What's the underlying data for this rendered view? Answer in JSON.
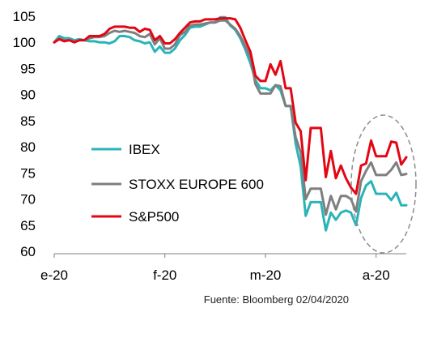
{
  "chart_data": {
    "type": "line",
    "x_tick_labels": [
      "e-20",
      "f-20",
      "m-20",
      "a-20"
    ],
    "x_tick_index": [
      0,
      22,
      42,
      64
    ],
    "ylim": [
      60,
      105
    ],
    "y_ticks": [
      60,
      65,
      70,
      75,
      80,
      85,
      90,
      95,
      100,
      105
    ],
    "series": [
      {
        "name": "IBEX",
        "color": "#2ab4b8",
        "values": [
          100.0,
          101.2,
          100.8,
          100.8,
          100.4,
          100.6,
          100.4,
          100.2,
          100.2,
          100.0,
          100.0,
          99.8,
          100.2,
          101.2,
          101.2,
          101.0,
          100.4,
          100.2,
          99.8,
          100.0,
          98.2,
          99.2,
          98.0,
          98.0,
          98.8,
          100.4,
          101.4,
          102.8,
          103.0,
          103.0,
          103.4,
          103.8,
          103.8,
          104.8,
          104.8,
          103.2,
          102.4,
          100.8,
          98.6,
          96.0,
          92.8,
          91.2,
          91.2,
          90.8,
          91.8,
          90.8,
          87.8,
          87.8,
          80.6,
          76.2,
          66.8,
          69.4,
          69.4,
          69.4,
          64.0,
          67.4,
          66.0,
          67.4,
          67.8,
          67.4,
          65.0,
          70.2,
          72.6,
          73.4,
          71.0,
          71.0,
          71.0,
          69.8,
          71.2,
          68.8,
          68.8
        ]
      },
      {
        "name": "STOXX EUROPE 600",
        "color": "#7f7f7f",
        "values": [
          100.0,
          100.8,
          100.4,
          100.4,
          100.2,
          100.4,
          100.4,
          100.8,
          101.0,
          101.0,
          101.2,
          101.8,
          102.2,
          102.0,
          102.2,
          102.0,
          101.8,
          101.2,
          101.0,
          101.6,
          99.6,
          100.8,
          98.8,
          98.8,
          99.6,
          101.4,
          102.0,
          103.2,
          103.4,
          103.4,
          103.6,
          103.8,
          103.8,
          104.2,
          104.2,
          103.4,
          102.6,
          101.2,
          99.2,
          97.2,
          92.0,
          90.2,
          90.2,
          90.2,
          91.8,
          91.6,
          87.8,
          87.8,
          81.8,
          79.0,
          70.0,
          72.0,
          72.0,
          72.0,
          67.0,
          70.6,
          68.0,
          70.6,
          70.6,
          70.0,
          67.6,
          73.4,
          75.4,
          77.0,
          74.6,
          74.6,
          74.6,
          75.6,
          77.0,
          74.6,
          74.8
        ]
      },
      {
        "name": "S&P500",
        "color": "#e30613",
        "values": [
          100.0,
          100.6,
          100.2,
          100.4,
          100.0,
          100.4,
          100.4,
          101.2,
          101.2,
          101.2,
          101.6,
          102.6,
          103.0,
          103.0,
          103.0,
          102.8,
          102.8,
          102.0,
          102.6,
          102.4,
          100.4,
          101.2,
          99.8,
          99.8,
          100.6,
          101.8,
          102.8,
          103.8,
          104.0,
          104.0,
          104.4,
          104.4,
          104.4,
          104.6,
          104.6,
          104.6,
          104.4,
          102.8,
          100.4,
          98.2,
          93.6,
          92.6,
          92.6,
          95.8,
          93.8,
          96.4,
          91.2,
          91.2,
          84.6,
          83.0,
          73.6,
          83.6,
          83.6,
          83.6,
          74.2,
          79.2,
          74.0,
          76.4,
          74.0,
          72.2,
          71.0,
          76.4,
          76.8,
          81.2,
          78.2,
          78.2,
          78.2,
          81.0,
          80.8,
          76.6,
          78.0
        ]
      }
    ],
    "legend_position": "left-middle",
    "grid": false,
    "source": "Fuente:  Bloomberg 02/04/2020",
    "annotation": "dashed ellipse around final weeks"
  }
}
